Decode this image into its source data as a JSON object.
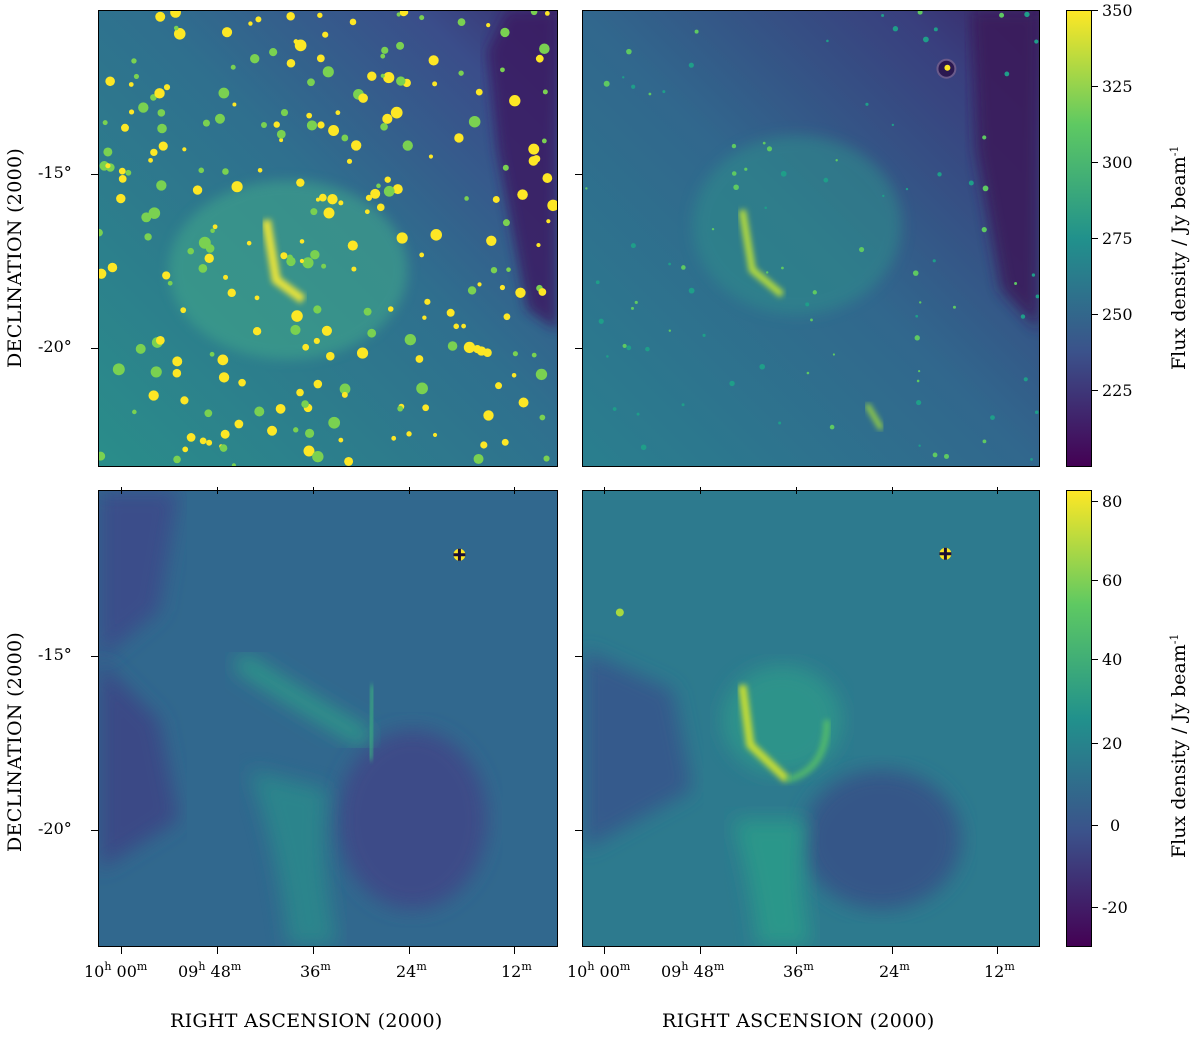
{
  "figure": {
    "panels": [
      {
        "id": "top-left"
      },
      {
        "id": "top-right"
      },
      {
        "id": "bottom-left"
      },
      {
        "id": "bottom-right"
      }
    ],
    "y_axis": {
      "label": "DECLINATION  (2000)",
      "ticks_top": [
        "-15°",
        "-20°"
      ],
      "ticks_bottom": [
        "-15°",
        "-20°"
      ]
    },
    "x_axis": {
      "label": "RIGHT ASCENSION  (2000)",
      "ticks": [
        {
          "h": "10",
          "hu": "h",
          "m": "00",
          "mu": "m"
        },
        {
          "h": "09",
          "hu": "h",
          "m": "48",
          "mu": "m"
        },
        {
          "h": "",
          "hu": "",
          "m": "36",
          "mu": "m"
        },
        {
          "h": "",
          "hu": "",
          "m": "24",
          "mu": "m"
        },
        {
          "h": "",
          "hu": "",
          "m": "12",
          "mu": "m"
        }
      ]
    },
    "colorbar_top": {
      "title": "Flux density / Jy beam",
      "title_exp": "-1",
      "ticks": [
        "350",
        "325",
        "300",
        "275",
        "250",
        "225"
      ],
      "colormap": "viridis",
      "range": [
        200,
        350
      ]
    },
    "colorbar_bottom": {
      "title": "Flux density / Jy beam",
      "title_exp": "-1",
      "ticks": [
        "80",
        "60",
        "40",
        "20",
        "0",
        "-20"
      ],
      "colormap": "viridis",
      "range": [
        -30,
        80
      ]
    },
    "colors": {
      "viridis_dark": "#440154",
      "viridis_blue": "#3b528b",
      "viridis_teal": "#21918c",
      "viridis_green": "#5ec962",
      "viridis_yellow": "#fde725"
    }
  }
}
